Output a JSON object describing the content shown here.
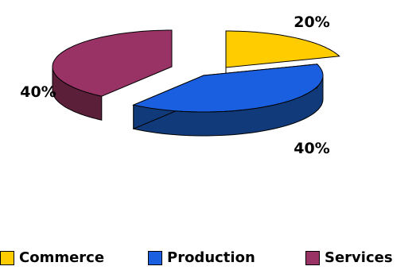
{
  "chart_data": {
    "type": "pie",
    "title": "",
    "slices": [
      {
        "label": "Commerce",
        "value": 20,
        "display": "20%"
      },
      {
        "label": "Production",
        "value": 40,
        "display": "40%"
      },
      {
        "label": "Services",
        "value": 40,
        "display": "40%"
      }
    ],
    "style": "3d exploded",
    "legend_position": "bottom",
    "colors": {
      "Commerce": {
        "top": "#FFCC00",
        "side": "#9C7A00"
      },
      "Production": {
        "top": "#1A5FE0",
        "side": "#103A7A"
      },
      "Services": {
        "top": "#993366",
        "side": "#5C1F3A"
      }
    }
  }
}
